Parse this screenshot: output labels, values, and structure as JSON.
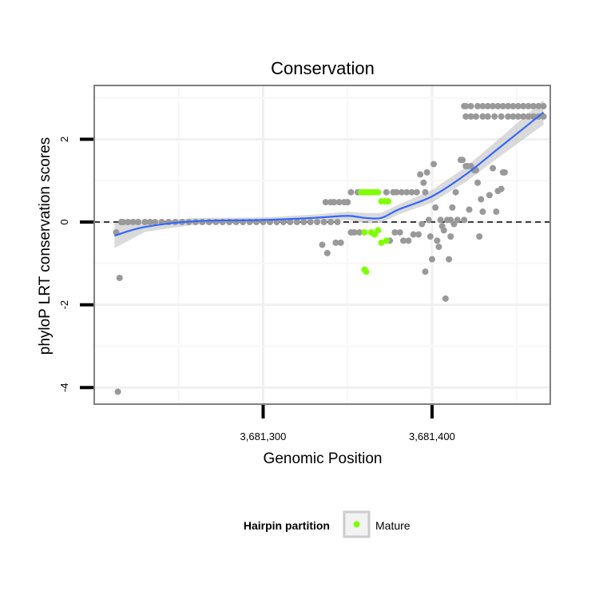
{
  "chart_data": {
    "type": "scatter",
    "title": "Conservation",
    "xlabel": "Genomic Position",
    "ylabel": "phyloP LRT conservation scores",
    "xlim": [
      3681200,
      3681470
    ],
    "ylim": [
      -4.4,
      3.3
    ],
    "xticks": [
      3681300,
      3681400
    ],
    "xtick_labels": [
      "3,681,300",
      "3,681,400"
    ],
    "yticks": [
      -4,
      -2,
      0,
      2
    ],
    "ytick_labels": [
      "-4",
      "-2",
      "0",
      "2"
    ],
    "grid": true,
    "reference_line": {
      "y": 0,
      "style": "dashed"
    },
    "legend": {
      "title": "Hairpin partition",
      "entries": [
        "Mature"
      ],
      "placement": "bottom"
    },
    "colors": {
      "other": "#999999",
      "mature": "#7fff00",
      "smooth": "#3366ff",
      "ribbon": "#cccccc",
      "panel_border": "#808080"
    },
    "series": [
      {
        "group": "other",
        "points": [
          [
            3681213,
            -0.25
          ],
          [
            3681214,
            -4.1
          ],
          [
            3681215,
            -1.35
          ],
          [
            3681216,
            0
          ],
          [
            3681217,
            0
          ],
          [
            3681220,
            0
          ],
          [
            3681223,
            0
          ],
          [
            3681226,
            0
          ],
          [
            3681230,
            0
          ],
          [
            3681233,
            0
          ],
          [
            3681236,
            0
          ],
          [
            3681240,
            0
          ],
          [
            3681244,
            0
          ],
          [
            3681248,
            0
          ],
          [
            3681252,
            0
          ],
          [
            3681256,
            0
          ],
          [
            3681260,
            0
          ],
          [
            3681264,
            0
          ],
          [
            3681268,
            0
          ],
          [
            3681272,
            0
          ],
          [
            3681276,
            0
          ],
          [
            3681280,
            0
          ],
          [
            3681284,
            0
          ],
          [
            3681288,
            0
          ],
          [
            3681292,
            0
          ],
          [
            3681296,
            0
          ],
          [
            3681300,
            0
          ],
          [
            3681304,
            0
          ],
          [
            3681308,
            0
          ],
          [
            3681312,
            0
          ],
          [
            3681316,
            0
          ],
          [
            3681320,
            0
          ],
          [
            3681324,
            0
          ],
          [
            3681328,
            0
          ],
          [
            3681332,
            0
          ],
          [
            3681336,
            0
          ],
          [
            3681340,
            0
          ],
          [
            3681344,
            0
          ],
          [
            3681335,
            -0.55
          ],
          [
            3681337,
            0.48
          ],
          [
            3681338,
            -0.75
          ],
          [
            3681340,
            0.48
          ],
          [
            3681342,
            0.48
          ],
          [
            3681343,
            -0.5
          ],
          [
            3681345,
            0.48
          ],
          [
            3681346,
            -0.5
          ],
          [
            3681348,
            0.48
          ],
          [
            3681350,
            0.48
          ],
          [
            3681352,
            0.72
          ],
          [
            3681352,
            -0.25
          ],
          [
            3681354,
            -0.25
          ],
          [
            3681356,
            0.72
          ],
          [
            3681357,
            -0.25
          ],
          [
            3681373,
            0.72
          ],
          [
            3681375,
            -0.45
          ],
          [
            3681377,
            0.72
          ],
          [
            3681378,
            -0.25
          ],
          [
            3681379,
            0.72
          ],
          [
            3681381,
            -0.25
          ],
          [
            3681382,
            0.72
          ],
          [
            3681383,
            -0.45
          ],
          [
            3681385,
            0.72
          ],
          [
            3681386,
            -0.45
          ],
          [
            3681388,
            0.72
          ],
          [
            3681389,
            -0.3
          ],
          [
            3681391,
            0.72
          ],
          [
            3681392,
            -0.3
          ],
          [
            3681393,
            1.15
          ],
          [
            3681394,
            -0.05
          ],
          [
            3681395,
            0.95
          ],
          [
            3681396,
            0.72
          ],
          [
            3681396,
            -1.2
          ],
          [
            3681397,
            1.2
          ],
          [
            3681398,
            0.05
          ],
          [
            3681399,
            -0.35
          ],
          [
            3681400,
            -0.9
          ],
          [
            3681401,
            1.4
          ],
          [
            3681402,
            0.35
          ],
          [
            3681403,
            -0.45
          ],
          [
            3681404,
            -0.6
          ],
          [
            3681405,
            0.05
          ],
          [
            3681406,
            -0.1
          ],
          [
            3681407,
            -0.2
          ],
          [
            3681408,
            -1.85
          ],
          [
            3681409,
            0.05
          ],
          [
            3681410,
            -0.9
          ],
          [
            3681411,
            -0.35
          ],
          [
            3681411,
            0.05
          ],
          [
            3681412,
            0.35
          ],
          [
            3681413,
            -0.05
          ],
          [
            3681414,
            0.72
          ],
          [
            3681415,
            0.05
          ],
          [
            3681417,
            1.5
          ],
          [
            3681418,
            1.5
          ],
          [
            3681419,
            0.05
          ],
          [
            3681420,
            1.35
          ],
          [
            3681421,
            1.35
          ],
          [
            3681422,
            0.3
          ],
          [
            3681423,
            1.35
          ],
          [
            3681425,
            1.25
          ],
          [
            3681426,
            1.25
          ],
          [
            3681427,
            0.95
          ],
          [
            3681428,
            -0.35
          ],
          [
            3681429,
            0.55
          ],
          [
            3681430,
            0.25
          ],
          [
            3681434,
            0.65
          ],
          [
            3681436,
            1.3
          ],
          [
            3681438,
            0.25
          ],
          [
            3681439,
            0.75
          ],
          [
            3681441,
            0.8
          ],
          [
            3681442,
            1.2
          ],
          [
            3681443,
            1.2
          ],
          [
            3681419,
            2.8
          ],
          [
            3681420,
            2.8
          ],
          [
            3681423,
            2.8
          ],
          [
            3681427,
            2.8
          ],
          [
            3681430,
            2.8
          ],
          [
            3681433,
            2.8
          ],
          [
            3681436,
            2.8
          ],
          [
            3681439,
            2.8
          ],
          [
            3681442,
            2.8
          ],
          [
            3681445,
            2.8
          ],
          [
            3681448,
            2.8
          ],
          [
            3681451,
            2.8
          ],
          [
            3681454,
            2.8
          ],
          [
            3681457,
            2.8
          ],
          [
            3681460,
            2.8
          ],
          [
            3681463,
            2.8
          ],
          [
            3681466,
            2.8
          ],
          [
            3681420,
            2.55
          ],
          [
            3681423,
            2.55
          ],
          [
            3681426,
            2.55
          ],
          [
            3681430,
            2.55
          ],
          [
            3681433,
            2.55
          ],
          [
            3681437,
            2.55
          ],
          [
            3681441,
            2.55
          ],
          [
            3681445,
            2.55
          ],
          [
            3681448,
            2.55
          ],
          [
            3681451,
            2.55
          ],
          [
            3681454,
            2.55
          ],
          [
            3681457,
            2.55
          ],
          [
            3681460,
            2.55
          ],
          [
            3681463,
            2.55
          ],
          [
            3681466,
            2.55
          ]
        ]
      },
      {
        "name": "Mature",
        "group": "mature",
        "points": [
          [
            3681358,
            0.72
          ],
          [
            3681360,
            0.72
          ],
          [
            3681362,
            0.72
          ],
          [
            3681364,
            0.72
          ],
          [
            3681366,
            0.72
          ],
          [
            3681368,
            0.72
          ],
          [
            3681370,
            0.5
          ],
          [
            3681372,
            0.5
          ],
          [
            3681374,
            0.5
          ],
          [
            3681360,
            -0.25
          ],
          [
            3681364,
            -0.25
          ],
          [
            3681366,
            -0.3
          ],
          [
            3681368,
            -0.2
          ],
          [
            3681370,
            -0.5
          ],
          [
            3681373,
            -0.45
          ],
          [
            3681360,
            -1.15
          ],
          [
            3681361,
            -1.2
          ]
        ]
      }
    ],
    "smooth": {
      "method": "loess",
      "points": [
        [
          3681212,
          -0.33
        ],
        [
          3681230,
          -0.12
        ],
        [
          3681260,
          0.02
        ],
        [
          3681300,
          0.05
        ],
        [
          3681330,
          0.1
        ],
        [
          3681350,
          0.15
        ],
        [
          3681360,
          0.1
        ],
        [
          3681370,
          0.1
        ],
        [
          3681380,
          0.3
        ],
        [
          3681400,
          0.62
        ],
        [
          3681420,
          1.15
        ],
        [
          3681440,
          1.8
        ],
        [
          3681466,
          2.65
        ]
      ],
      "ribbon_halfwidth": [
        0.3,
        0.12,
        0.08,
        0.06,
        0.08,
        0.1,
        0.12,
        0.12,
        0.12,
        0.15,
        0.18,
        0.22,
        0.3
      ]
    }
  }
}
